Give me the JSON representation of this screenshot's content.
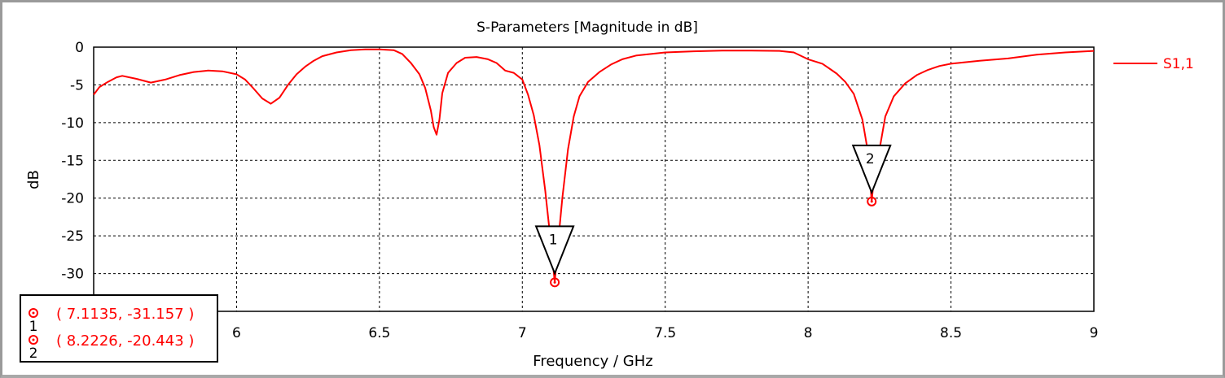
{
  "chart_data": {
    "type": "line",
    "title": "S-Parameters [Magnitude in dB]",
    "xlabel": "Frequency / GHz",
    "ylabel": "dB",
    "xlim": [
      5.5,
      9
    ],
    "ylim": [
      -35,
      0
    ],
    "x_ticks": [
      "6",
      "6.5",
      "7",
      "7.5",
      "8",
      "8.5",
      "9"
    ],
    "x_tick_values": [
      6,
      6.5,
      7,
      7.5,
      8,
      8.5,
      9
    ],
    "y_ticks": [
      "0",
      "-5",
      "-10",
      "-15",
      "-20",
      "-25",
      "-30"
    ],
    "y_tick_values": [
      0,
      -5,
      -10,
      -15,
      -20,
      -25,
      -30
    ],
    "grid": true,
    "legend_position": "right",
    "series": [
      {
        "name": "S1,1",
        "color": "#ff0000",
        "x": [
          5.5,
          5.52,
          5.55,
          5.58,
          5.6,
          5.65,
          5.7,
          5.75,
          5.8,
          5.85,
          5.9,
          5.95,
          6.0,
          6.03,
          6.06,
          6.09,
          6.12,
          6.15,
          6.18,
          6.21,
          6.24,
          6.27,
          6.3,
          6.35,
          6.4,
          6.45,
          6.5,
          6.55,
          6.58,
          6.61,
          6.64,
          6.66,
          6.68,
          6.69,
          6.7,
          6.71,
          6.72,
          6.74,
          6.77,
          6.8,
          6.84,
          6.88,
          6.91,
          6.94,
          6.97,
          7.0,
          7.02,
          7.04,
          7.06,
          7.08,
          7.1,
          7.1135,
          7.12,
          7.14,
          7.16,
          7.18,
          7.2,
          7.23,
          7.27,
          7.31,
          7.35,
          7.4,
          7.5,
          7.6,
          7.7,
          7.8,
          7.9,
          7.95,
          8.0,
          8.05,
          8.1,
          8.13,
          8.16,
          8.19,
          8.21,
          8.2226,
          8.23,
          8.25,
          8.27,
          8.3,
          8.34,
          8.38,
          8.42,
          8.46,
          8.5,
          8.6,
          8.7,
          8.8,
          8.9,
          9.0
        ],
        "y": [
          -6.3,
          -5.3,
          -4.6,
          -4.0,
          -3.8,
          -4.2,
          -4.7,
          -4.3,
          -3.7,
          -3.3,
          -3.1,
          -3.2,
          -3.6,
          -4.3,
          -5.5,
          -6.8,
          -7.5,
          -6.7,
          -5.0,
          -3.6,
          -2.6,
          -1.8,
          -1.2,
          -0.7,
          -0.4,
          -0.3,
          -0.3,
          -0.4,
          -0.9,
          -2.1,
          -3.6,
          -5.4,
          -8.4,
          -10.6,
          -11.6,
          -9.6,
          -6.1,
          -3.4,
          -2.1,
          -1.4,
          -1.3,
          -1.6,
          -2.1,
          -3.1,
          -3.4,
          -4.3,
          -6.3,
          -9.0,
          -13.0,
          -19.0,
          -26.0,
          -31.157,
          -28.0,
          -20.0,
          -13.5,
          -9.2,
          -6.5,
          -4.6,
          -3.3,
          -2.3,
          -1.6,
          -1.1,
          -0.7,
          -0.55,
          -0.45,
          -0.45,
          -0.5,
          -0.7,
          -1.6,
          -2.2,
          -3.5,
          -4.6,
          -6.2,
          -9.6,
          -14.0,
          -20.443,
          -17.5,
          -13.5,
          -9.2,
          -6.5,
          -4.8,
          -3.7,
          -3.0,
          -2.5,
          -2.2,
          -1.8,
          -1.5,
          -1.0,
          -0.7,
          -0.5
        ]
      }
    ],
    "markers": [
      {
        "label": "1",
        "x": 7.1135,
        "y": -31.157,
        "readout": "( 7.1135, -31.157 )"
      },
      {
        "label": "2",
        "x": 8.2226,
        "y": -20.443,
        "readout": "( 8.2226, -20.443 )"
      }
    ]
  }
}
